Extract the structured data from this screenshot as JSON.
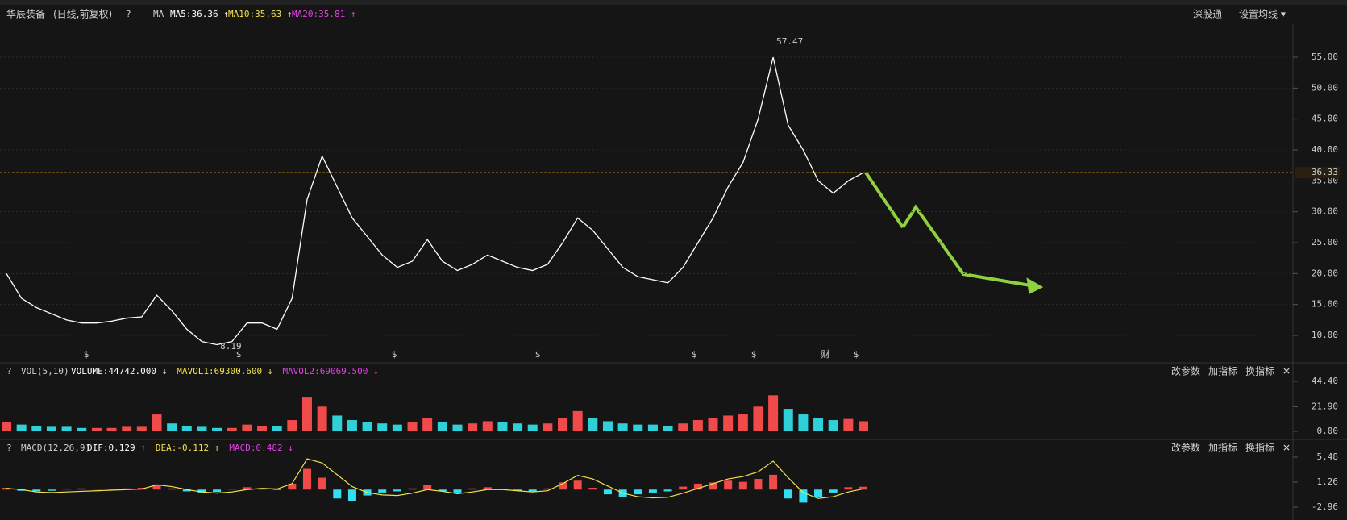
{
  "header": {
    "name": "华辰装备",
    "mode": "(日线,前复权)",
    "help": "?",
    "ma_label": "MA",
    "ma5": "MA5:36.36 ↑",
    "ma10": "MA10:35.63 ↑",
    "ma20": "MA20:35.81 ↑",
    "links": [
      "深股通",
      "设置均线 ▾"
    ]
  },
  "chart_data": [
    {
      "type": "line",
      "color": "#ffffff",
      "values": [
        20,
        16,
        14.5,
        13.5,
        12.5,
        12,
        12,
        12.3,
        12.8,
        13,
        16.5,
        14,
        11,
        9,
        8.5,
        9,
        12,
        12,
        11,
        16,
        32,
        39,
        34,
        29,
        26,
        23,
        21,
        22,
        25.5,
        22,
        20.5,
        21.5,
        23,
        22,
        21,
        20.5,
        21.5,
        25,
        29,
        27,
        24,
        21,
        19.5,
        19,
        18.5,
        21,
        25,
        29,
        34,
        38,
        45,
        55,
        44,
        40,
        35,
        33,
        35,
        36.33
      ],
      "ylim": [
        6.09,
        58
      ],
      "yticks": [
        {
          "value": 10,
          "label": "10.00"
        },
        {
          "value": 15,
          "label": "15.00"
        },
        {
          "value": 20,
          "label": "20.00"
        },
        {
          "value": 25,
          "label": "25.00"
        },
        {
          "value": 30,
          "label": "30.00"
        },
        {
          "value": 35,
          "label": "35.00"
        },
        {
          "value": 40,
          "label": "40.00"
        },
        {
          "value": 45,
          "label": "45.00"
        },
        {
          "value": 50,
          "label": "50.00"
        },
        {
          "value": 55,
          "label": "55.00"
        }
      ],
      "grid": true,
      "last_price": 36.33,
      "high": 57.47,
      "low": 8.19,
      "markers": [
        "$",
        "$",
        "$",
        "$",
        "$",
        "$",
        "财",
        "$"
      ]
    },
    {
      "type": "bar",
      "title": "VOL(5,10)",
      "legend": [
        "VOLUME:44742.000 ↓",
        "MAVOL1:69300.600 ↓",
        "MAVOL2:69069.500 ↓"
      ],
      "values": [
        8,
        6,
        5,
        4,
        4,
        3,
        3,
        3,
        4,
        4,
        15,
        7,
        5,
        4,
        3,
        3,
        6,
        5,
        5,
        10,
        30,
        22,
        14,
        10,
        8,
        7,
        6,
        8,
        12,
        8,
        6,
        7,
        9,
        8,
        7,
        6,
        7,
        12,
        18,
        12,
        9,
        7,
        6,
        6,
        5,
        7,
        10,
        12,
        14,
        15,
        22,
        32,
        20,
        15,
        12,
        10,
        11,
        9
      ],
      "ylim": [
        -3.58,
        49.42
      ],
      "yticks": [
        {
          "value": 0,
          "label": "0.00"
        },
        {
          "value": 21.9,
          "label": "21.90"
        },
        {
          "value": 44.4,
          "label": "44.40"
        }
      ]
    },
    {
      "type": "macd",
      "title": "MACD(12,26,9)",
      "legend": [
        "DIF:0.129 ↑",
        "DEA:-0.112 ↑",
        "MACD:0.482 ↓"
      ],
      "values": [
        0.3,
        -0.2,
        -0.3,
        -0.2,
        0.1,
        0.2,
        0.1,
        0.1,
        0.2,
        0.3,
        0.8,
        0.2,
        -0.3,
        -0.5,
        -0.4,
        0.1,
        0.4,
        0.2,
        -0.1,
        1,
        3.5,
        2,
        -1.5,
        -2,
        -1,
        -0.5,
        -0.3,
        0.2,
        0.8,
        -0.3,
        -0.5,
        0.2,
        0.4,
        0.1,
        -0.2,
        -0.3,
        0.2,
        1.2,
        1.5,
        0.3,
        -0.8,
        -1.2,
        -0.8,
        -0.5,
        -0.3,
        0.5,
        1,
        1.2,
        1.5,
        1.3,
        1.8,
        2.5,
        -1.5,
        -2.2,
        -1.3,
        -0.5,
        0.4,
        0.48
      ],
      "dif": [
        0.2,
        0,
        -0.4,
        -0.5,
        -0.4,
        -0.3,
        -0.2,
        -0.1,
        0,
        0.1,
        0.8,
        0.5,
        0,
        -0.4,
        -0.6,
        -0.4,
        0,
        0.2,
        0.1,
        1,
        5.2,
        4.5,
        2.5,
        0.5,
        -0.5,
        -0.9,
        -1,
        -0.6,
        0,
        -0.3,
        -0.7,
        -0.4,
        0,
        0,
        -0.2,
        -0.4,
        -0.2,
        1,
        2.4,
        1.8,
        0.6,
        -0.6,
        -1.2,
        -1.4,
        -1.3,
        -0.6,
        0.2,
        1,
        1.8,
        2.2,
        3,
        4.8,
        2,
        -0.5,
        -1.5,
        -1.2,
        -0.4,
        0.129
      ],
      "ylim": [
        -4.46,
        8.07
      ],
      "yticks": [
        -2.96,
        1.26,
        5.48
      ]
    }
  ],
  "panel_buttons": [
    "改参数",
    "加指标",
    "换指标"
  ]
}
